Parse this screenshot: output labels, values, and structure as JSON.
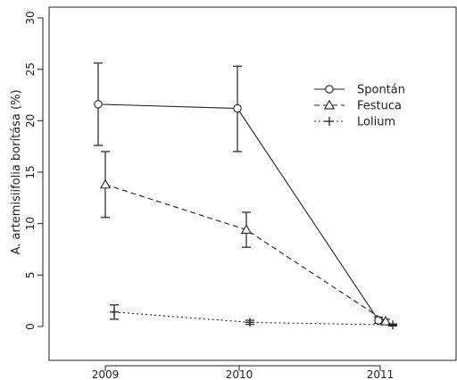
{
  "chart_data": {
    "type": "line",
    "x": [
      "2009",
      "2010",
      "2011"
    ],
    "xlabel": "",
    "ylabel": "A. artemisiifolia borítása (%)",
    "ylim": [
      0,
      30
    ],
    "yticks": [
      0,
      5,
      10,
      15,
      20,
      25,
      30
    ],
    "grid": false,
    "legend_position": "top-right",
    "series": [
      {
        "name": "Spontán",
        "marker": "circle",
        "line": "solid",
        "values": [
          21.6,
          21.2,
          0.6
        ],
        "err_low": [
          17.6,
          17.0,
          0.3
        ],
        "err_high": [
          25.6,
          25.3,
          0.9
        ]
      },
      {
        "name": "Festuca",
        "marker": "triangle",
        "line": "dashed",
        "values": [
          13.8,
          9.4,
          0.5
        ],
        "err_low": [
          10.6,
          7.7,
          0.3
        ],
        "err_high": [
          17.0,
          11.1,
          0.7
        ]
      },
      {
        "name": "Lolium",
        "marker": "plus",
        "line": "dotted",
        "values": [
          1.4,
          0.4,
          0.15
        ],
        "err_low": [
          0.7,
          0.2,
          0.05
        ],
        "err_high": [
          2.1,
          0.6,
          0.25
        ]
      }
    ]
  }
}
